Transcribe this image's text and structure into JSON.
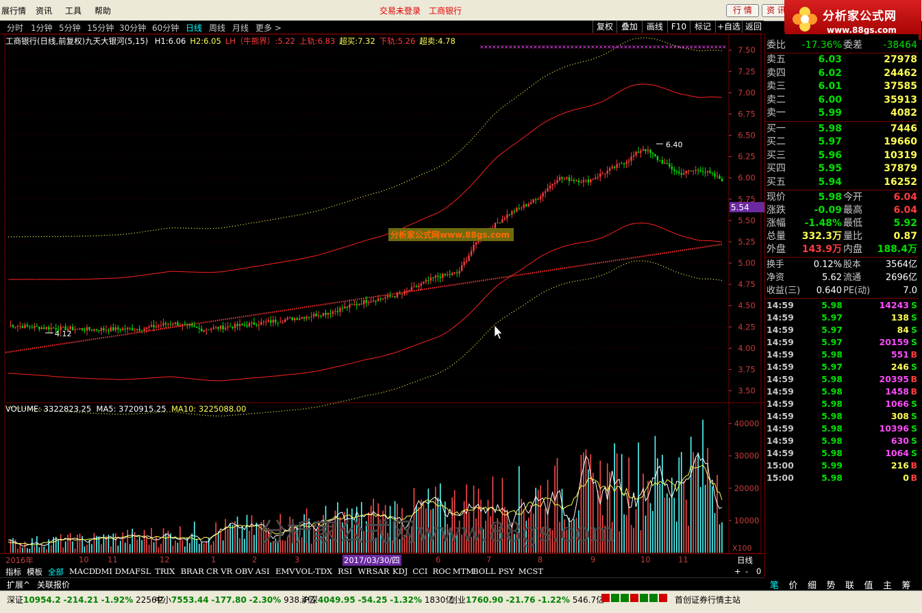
{
  "menu": {
    "items": [
      "展行情",
      "资讯",
      "工具",
      "帮助"
    ],
    "alerts": [
      "交易未登录",
      "工商银行"
    ],
    "right_buttons": [
      "行 情",
      "资 讯"
    ]
  },
  "logo": {
    "title": "分析家公式网",
    "url": "www.88gs.com"
  },
  "periods": {
    "items": [
      "分时",
      "1分钟",
      "5分钟",
      "15分钟",
      "30分钟",
      "60分钟",
      "日线",
      "周线",
      "月线",
      "更多 >"
    ],
    "active": "日线"
  },
  "toolbar": [
    "复权",
    "叠加",
    "画线",
    "F10",
    "标记",
    "+自选",
    "返回"
  ],
  "legend": {
    "title": "工商银行(日线,前复权)",
    "indicator": "九天大银河(5,15)",
    "items": [
      {
        "label": "H1:",
        "value": "6.06",
        "color": "#ffffff"
      },
      {
        "label": "H2:",
        "value": "6.05",
        "color": "#ffff54"
      },
      {
        "label": "LH（牛熊界）:",
        "value": "5.22",
        "color": "#ff3c3c"
      },
      {
        "label": "上轨:",
        "value": "6.83",
        "color": "#ff3c3c"
      },
      {
        "label": "超买:",
        "value": "7.32",
        "color": "#ffff54"
      },
      {
        "label": "下轨:",
        "value": "5.26",
        "color": "#ff3c3c"
      },
      {
        "label": "超卖:",
        "value": "4.78",
        "color": "#ffff54"
      }
    ]
  },
  "price_chart": {
    "y_ticks": [
      "7.50",
      "7.25",
      "7.00",
      "6.75",
      "6.50",
      "6.25",
      "6.00",
      "5.75",
      "5.50",
      "5.25",
      "5.00",
      "4.75",
      "4.50",
      "4.25",
      "4.00",
      "3.75",
      "3.50"
    ],
    "current_price_label": "5.54",
    "high_label": "6.40",
    "low_label": "4.12",
    "watermark": "分析家公式网www.88gs.com"
  },
  "volume_legend": {
    "volume": "VOLUME: 3322823.25",
    "ma5": "MA5: 3720915.25",
    "ma10": "MA10: 3225088.00"
  },
  "volume_chart": {
    "y_ticks": [
      "40000",
      "30000",
      "20000",
      "10000"
    ],
    "unit": "X100",
    "watermark": "分析家公式网www.88gs.com"
  },
  "dates": {
    "labels": [
      "2016年",
      "10",
      "11",
      "12",
      "1",
      "2",
      "3",
      "4",
      "5",
      "6",
      "7",
      "8",
      "9",
      "10",
      "11"
    ],
    "highlight": "2017/03/30/四",
    "period_label": "日线"
  },
  "indicators": [
    "指标",
    "模板",
    "全部",
    "MACD",
    "DMI",
    "DMA",
    "FSL",
    "TRIX",
    "BRAR",
    "CR",
    "VR",
    "OBV",
    "ASI",
    "EMV",
    "VOL-TDX",
    "RSI",
    "WR",
    "SAR",
    "KDJ",
    "CCI",
    "ROC",
    "MTM",
    "BOLL",
    "PSY",
    "MCST"
  ],
  "zoom_controls": [
    "+",
    "-",
    "0"
  ],
  "expand_bar": [
    "扩展^",
    "关联报价"
  ],
  "quote": {
    "weibi": {
      "label": "委比",
      "value": "-17.36%",
      "label2": "委差",
      "value2": "-38464"
    },
    "asks": [
      {
        "label": "卖五",
        "price": "6.03",
        "vol": "27978"
      },
      {
        "label": "卖四",
        "price": "6.02",
        "vol": "24462"
      },
      {
        "label": "卖三",
        "price": "6.01",
        "vol": "37585"
      },
      {
        "label": "卖二",
        "price": "6.00",
        "vol": "35913"
      },
      {
        "label": "卖一",
        "price": "5.99",
        "vol": "4082"
      }
    ],
    "bids": [
      {
        "label": "买一",
        "price": "5.98",
        "vol": "7446"
      },
      {
        "label": "买二",
        "price": "5.97",
        "vol": "19660"
      },
      {
        "label": "买三",
        "price": "5.96",
        "vol": "10319"
      },
      {
        "label": "买四",
        "price": "5.95",
        "vol": "37879"
      },
      {
        "label": "买五",
        "price": "5.94",
        "vol": "16252"
      }
    ],
    "stats1": [
      {
        "l1": "现价",
        "v1": "5.98",
        "c1": "#00e000",
        "l2": "今开",
        "v2": "6.04",
        "c2": "#ff3c3c"
      },
      {
        "l1": "涨跌",
        "v1": "-0.09",
        "c1": "#00e000",
        "l2": "最高",
        "v2": "6.04",
        "c2": "#ff3c3c"
      },
      {
        "l1": "涨幅",
        "v1": "-1.48%",
        "c1": "#00e000",
        "l2": "最低",
        "v2": "5.92",
        "c2": "#00e000"
      },
      {
        "l1": "总量",
        "v1": "332.3万",
        "c1": "#ffff54",
        "l2": "量比",
        "v2": "0.87",
        "c2": "#ffff54"
      },
      {
        "l1": "外盘",
        "v1": "143.9万",
        "c1": "#ff3c3c",
        "l2": "内盘",
        "v2": "188.4万",
        "c2": "#00e000"
      }
    ],
    "stats2": [
      {
        "l1": "换手",
        "v1": "0.12%",
        "l2": "股本",
        "v2": "3564亿"
      },
      {
        "l1": "净资",
        "v1": "5.62",
        "l2": "流通",
        "v2": "2696亿"
      },
      {
        "l1": "收益(三)",
        "v1": "0.640",
        "l2": "PE(动)",
        "v2": "7.0"
      }
    ],
    "ticks": [
      {
        "t": "14:59",
        "p": "5.98",
        "v": "14243",
        "f": "S",
        "vc": "#ff4cff",
        "fc": "#00e000"
      },
      {
        "t": "14:59",
        "p": "5.97",
        "v": "138",
        "f": "S",
        "vc": "#ffff54",
        "fc": "#00e000"
      },
      {
        "t": "14:59",
        "p": "5.97",
        "v": "84",
        "f": "S",
        "vc": "#ffff54",
        "fc": "#00e000"
      },
      {
        "t": "14:59",
        "p": "5.97",
        "v": "20159",
        "f": "S",
        "vc": "#ff4cff",
        "fc": "#00e000"
      },
      {
        "t": "14:59",
        "p": "5.98",
        "v": "551",
        "f": "B",
        "vc": "#ff4cff",
        "fc": "#ff3c3c"
      },
      {
        "t": "14:59",
        "p": "5.97",
        "v": "246",
        "f": "S",
        "vc": "#ffff54",
        "fc": "#00e000"
      },
      {
        "t": "14:59",
        "p": "5.98",
        "v": "20395",
        "f": "B",
        "vc": "#ff4cff",
        "fc": "#ff3c3c"
      },
      {
        "t": "14:59",
        "p": "5.98",
        "v": "1458",
        "f": "B",
        "vc": "#ff4cff",
        "fc": "#ff3c3c"
      },
      {
        "t": "14:59",
        "p": "5.98",
        "v": "1066",
        "f": "S",
        "vc": "#ff4cff",
        "fc": "#00e000"
      },
      {
        "t": "14:59",
        "p": "5.98",
        "v": "308",
        "f": "S",
        "vc": "#ffff54",
        "fc": "#00e000"
      },
      {
        "t": "14:59",
        "p": "5.98",
        "v": "10396",
        "f": "S",
        "vc": "#ff4cff",
        "fc": "#00e000"
      },
      {
        "t": "14:59",
        "p": "5.98",
        "v": "630",
        "f": "S",
        "vc": "#ff4cff",
        "fc": "#00e000"
      },
      {
        "t": "14:59",
        "p": "5.98",
        "v": "1064",
        "f": "S",
        "vc": "#ff4cff",
        "fc": "#00e000"
      },
      {
        "t": "15:00",
        "p": "5.99",
        "v": "216",
        "f": "B",
        "vc": "#ffff54",
        "fc": "#ff3c3c"
      },
      {
        "t": "15:00",
        "p": "5.98",
        "v": "0",
        "f": "B",
        "vc": "#ffff54",
        "fc": "#ff3c3c"
      }
    ]
  },
  "bottom_tabs": [
    "笔",
    "价",
    "细",
    "势",
    "联",
    "值",
    "主",
    "筹"
  ],
  "status": [
    {
      "name": "深证",
      "value": "10954.2",
      "chg": "-214.21",
      "pct": "-1.92%",
      "amt": "2256亿"
    },
    {
      "name": "中小",
      "value": "7553.44",
      "chg": "-177.80",
      "pct": "-2.30%",
      "amt": "938.4亿"
    },
    {
      "name": "沪深",
      "value": "4049.95",
      "chg": "-54.25",
      "pct": "-1.32%",
      "amt": "1830亿"
    },
    {
      "name": "创业",
      "value": "1760.90",
      "chg": "-21.76",
      "pct": "-1.22%",
      "amt": "546.7亿"
    }
  ],
  "status_right": "首创证券行情主站",
  "colors": {
    "up": "#ff3c3c",
    "down": "#00e000",
    "band": "#ff2020",
    "dots": "#ffff54",
    "grid": "#7a0000"
  }
}
